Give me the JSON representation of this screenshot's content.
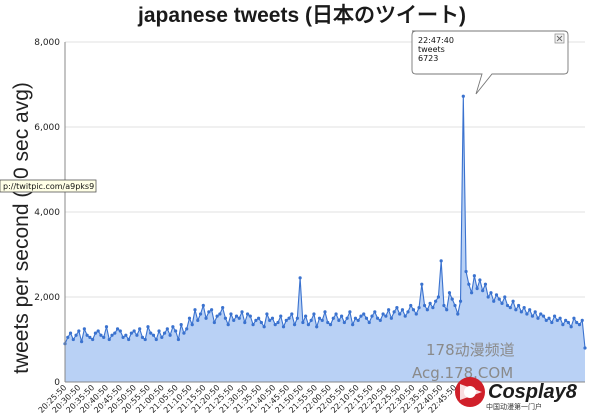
{
  "chart_data": {
    "type": "area",
    "title": "japanese tweets (日本のツイート)",
    "ylabel": "tweets per second (10 sec avg)",
    "xlabel": "",
    "ylim": [
      0,
      8000
    ],
    "y_ticks": [
      "0",
      "2,000",
      "4,000",
      "6,000",
      "8,000"
    ],
    "x_ticks": [
      "20:25:50",
      "20:30:50",
      "20:35:50",
      "20:40:50",
      "20:45:50",
      "20:50:50",
      "20:55:50",
      "21:00:50",
      "21:05:50",
      "21:10:50",
      "21:15:50",
      "21:20:50",
      "21:25:50",
      "21:30:50",
      "21:35:50",
      "21:40:50",
      "21:45:50",
      "21:50:50",
      "21:55:50",
      "22:00:50",
      "22:05:50",
      "22:10:50",
      "22:15:50",
      "22:20:50",
      "22:25:50",
      "22:30:50",
      "22:35:50",
      "22:40:50",
      "22:45:50"
    ],
    "grid": "horizontal",
    "series": [
      {
        "color": "#3a72cf",
        "fill": "#b9d1f5",
        "values": [
          900,
          1050,
          1150,
          1000,
          1100,
          1200,
          950,
          1250,
          1100,
          1050,
          1000,
          1150,
          1200,
          1100,
          1050,
          1300,
          1000,
          1100,
          1150,
          1250,
          1200,
          1050,
          1100,
          1000,
          1150,
          1200,
          1100,
          1250,
          1050,
          1000,
          1300,
          1150,
          1100,
          1000,
          1200,
          1050,
          1150,
          1250,
          1100,
          1300,
          1200,
          1000,
          1350,
          1150,
          1250,
          1500,
          1350,
          1700,
          1450,
          1600,
          1800,
          1500,
          1650,
          1700,
          1400,
          1550,
          1600,
          1750,
          1500,
          1350,
          1600,
          1450,
          1550,
          1500,
          1650,
          1400,
          1600,
          1550,
          1350,
          1450,
          1500,
          1400,
          1300,
          1600,
          1450,
          1500,
          1350,
          1400,
          1550,
          1300,
          1450,
          1500,
          1600,
          1350,
          1500,
          2450,
          1400,
          1550,
          1350,
          1450,
          1600,
          1300,
          1500,
          1450,
          1650,
          1400,
          1350,
          1500,
          1600,
          1450,
          1550,
          1400,
          1500,
          1650,
          1350,
          1500,
          1450,
          1550,
          1600,
          1500,
          1400,
          1550,
          1650,
          1500,
          1450,
          1600,
          1550,
          1700,
          1500,
          1650,
          1750,
          1600,
          1700,
          1550,
          1650,
          1800,
          1700,
          1600,
          1750,
          2300,
          1800,
          1700,
          1850,
          1750,
          1900,
          2000,
          2850,
          1800,
          1700,
          2100,
          1950,
          1800,
          1600,
          1900,
          6723,
          2600,
          2300,
          2100,
          2500,
          2200,
          2400,
          2150,
          2300,
          2000,
          2100,
          1900,
          2050,
          1950,
          1850,
          2000,
          1800,
          1750,
          1900,
          1700,
          1800,
          1650,
          1750,
          1600,
          1700,
          1550,
          1650,
          1500,
          1600,
          1550,
          1450,
          1500,
          1400,
          1550,
          1450,
          1500,
          1350,
          1450,
          1400,
          1300,
          1500,
          1400,
          1350,
          1450,
          800
        ]
      }
    ],
    "tooltip": {
      "time": "22:47:40",
      "label": "tweets",
      "value": "6723"
    },
    "annotation": "p://twitpic.com/a9pks9",
    "watermark": {
      "site_cn": "178动漫频道",
      "site_url": "Acg.178.COM",
      "brand": "Cosplay8",
      "brand_sub": "中国动漫第一门户"
    }
  }
}
